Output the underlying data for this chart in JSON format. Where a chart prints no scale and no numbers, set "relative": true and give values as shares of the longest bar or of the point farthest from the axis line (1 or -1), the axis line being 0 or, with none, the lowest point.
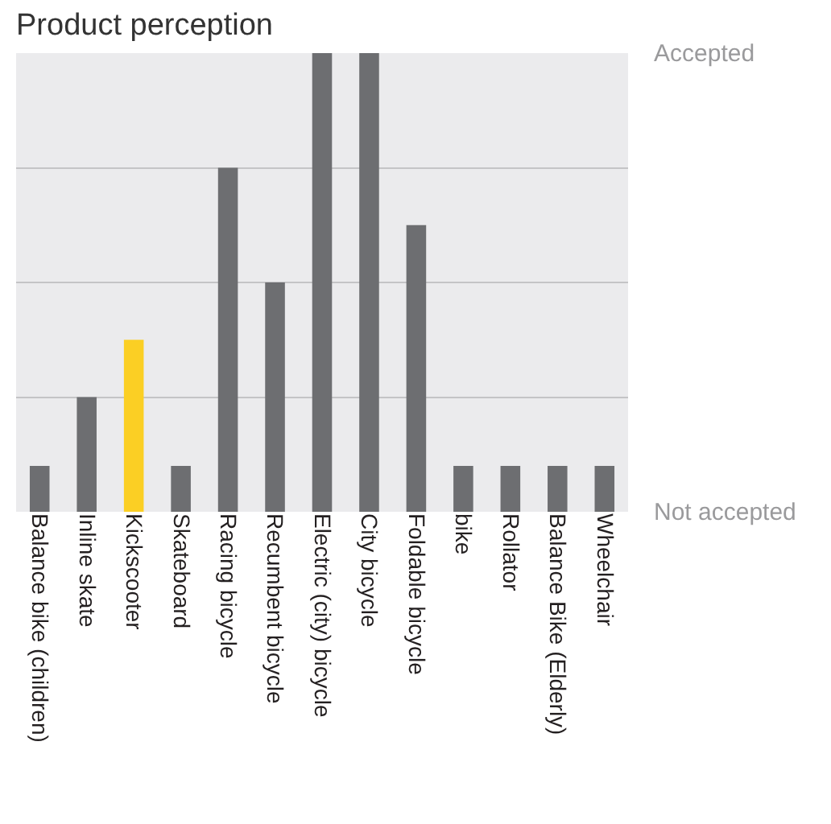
{
  "chart_data": {
    "type": "bar",
    "title": "Product perception",
    "categories": [
      "Balance bike (children)",
      "Inline skate",
      "Kickscooter",
      "Skateboard",
      "Racing bicycle",
      "Recumbent bicycle",
      "Electric (city) bicycle",
      "City bicycle",
      "Foldable bicycle",
      "bike",
      "Rollator",
      "Balance Bike (Elderly)",
      "Wheelchair"
    ],
    "values": [
      0.1,
      0.25,
      0.375,
      0.1,
      0.75,
      0.5,
      1,
      1,
      0.625,
      0.1,
      0.1,
      0.1,
      0.1
    ],
    "colors": [
      "#6d6e71",
      "#6d6e71",
      "#fbcf24",
      "#6d6e71",
      "#6d6e71",
      "#6d6e71",
      "#6d6e71",
      "#6d6e71",
      "#6d6e71",
      "#6d6e71",
      "#6d6e71",
      "#6d6e71",
      "#6d6e71"
    ],
    "relative": true,
    "annotations": [
      "Accepted",
      "Not accepted"
    ],
    "grid": "y"
  }
}
